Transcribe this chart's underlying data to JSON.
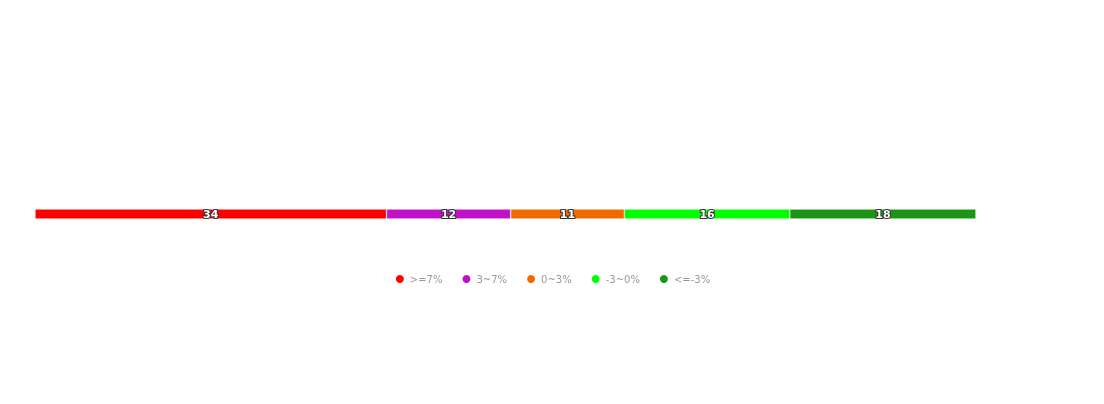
{
  "chart_data": {
    "type": "bar",
    "orientation": "horizontal",
    "stacked": true,
    "categories": [
      null
    ],
    "series": [
      {
        "name": ">=7%",
        "color": "#ff0000",
        "values": [
          34
        ]
      },
      {
        "name": "3~7%",
        "color": "#c010c8",
        "values": [
          12
        ]
      },
      {
        "name": "0~3%",
        "color": "#f06a00",
        "values": [
          11
        ]
      },
      {
        "name": "-3~0%",
        "color": "#00ff00",
        "values": [
          16
        ]
      },
      {
        "name": "<=-3%",
        "color": "#1a9614",
        "values": [
          18
        ]
      }
    ],
    "data_labels": true,
    "legend": "bottom",
    "grid": false,
    "tick_labels": false
  }
}
